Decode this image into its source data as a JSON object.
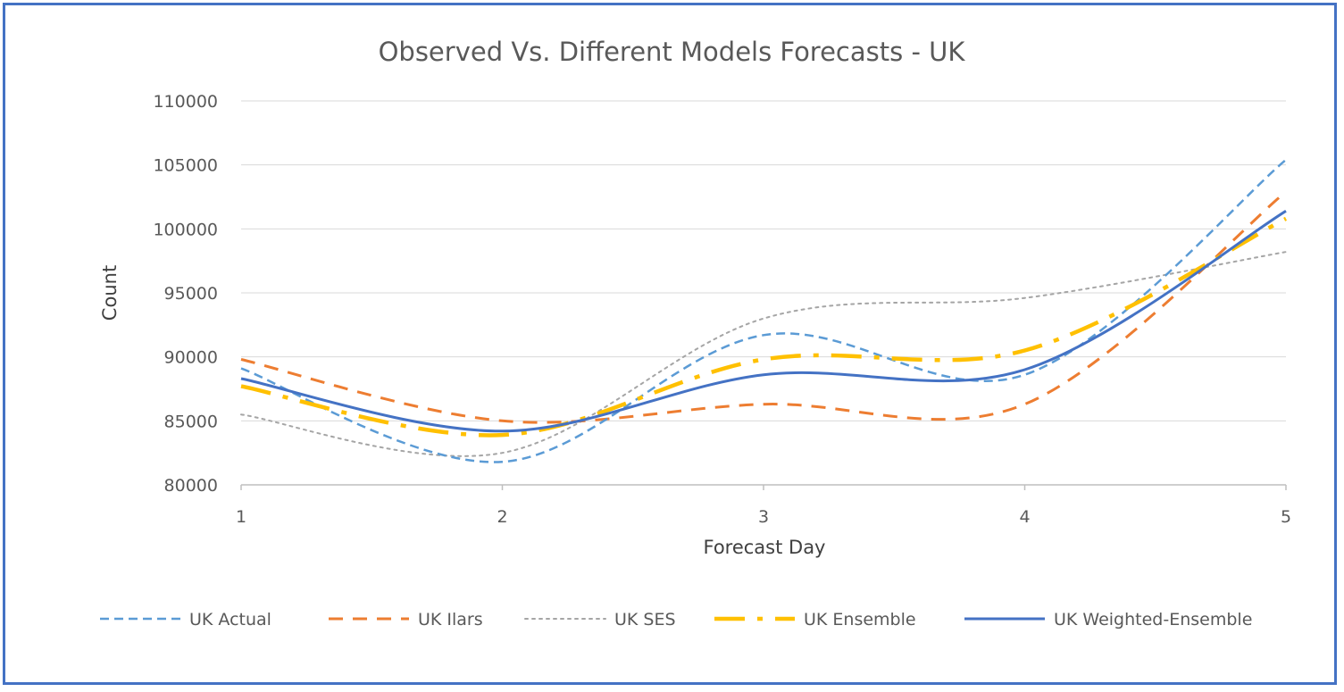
{
  "chart_data": {
    "type": "line",
    "title": "Observed Vs. Different Models Forecasts - UK",
    "xlabel": "Forecast Day",
    "ylabel": "Count",
    "x": [
      1,
      2,
      3,
      4,
      5
    ],
    "x_tick_labels": [
      "1",
      "2",
      "3",
      "4",
      "5"
    ],
    "y_tick_labels": [
      "80000",
      "85000",
      "90000",
      "95000",
      "100000",
      "105000",
      "110000"
    ],
    "y_ticks": [
      80000,
      85000,
      90000,
      95000,
      100000,
      105000,
      110000
    ],
    "ylim": [
      80000,
      110000
    ],
    "xlim": [
      1,
      5
    ],
    "grid": "horizontal",
    "legend_position": "bottom",
    "series": [
      {
        "name": "UK Actual",
        "values": [
          89100,
          81800,
          91700,
          88600,
          105400
        ],
        "color": "#5b9bd5",
        "dash": "short-dash"
      },
      {
        "name": "UK Ilars",
        "values": [
          89800,
          85000,
          86300,
          86300,
          102900
        ],
        "color": "#ed7d31",
        "dash": "dash"
      },
      {
        "name": "UK SES",
        "values": [
          85500,
          82500,
          93000,
          94600,
          98200
        ],
        "color": "#a5a5a5",
        "dash": "dot"
      },
      {
        "name": "UK Ensemble",
        "values": [
          87700,
          83900,
          89800,
          90500,
          100800
        ],
        "color": "#ffc000",
        "dash": "long-dash-dot"
      },
      {
        "name": "UK Weighted-Ensemble",
        "values": [
          88300,
          84200,
          88600,
          89000,
          101400
        ],
        "color": "#4472c4",
        "dash": "solid"
      }
    ]
  }
}
